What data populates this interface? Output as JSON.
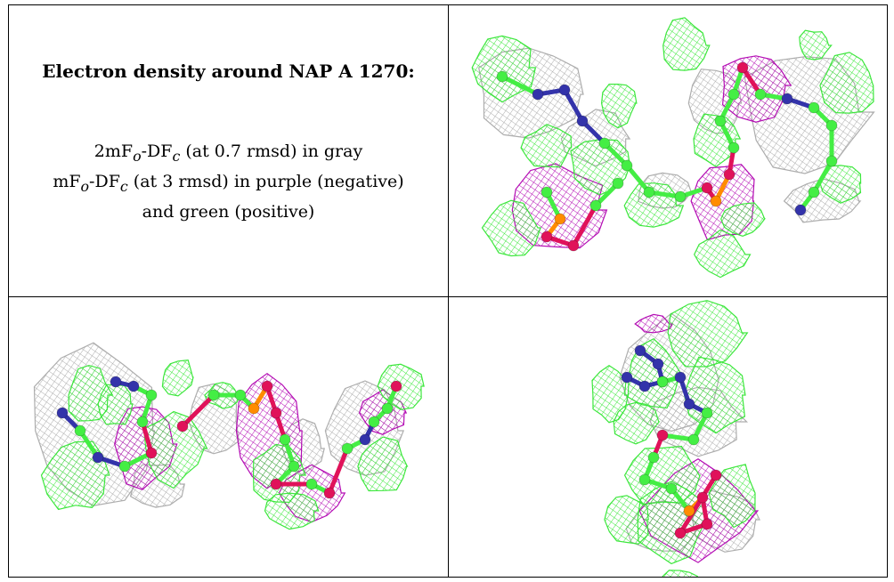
{
  "panel_text": {
    "title": "Electron density around NAP A 1270:",
    "line1": {
      "pre": "2mF",
      "sub1": "o",
      "mid": "-DF",
      "sub2": "c",
      "post": " (at 0.7 rmsd) in gray"
    },
    "line2": {
      "pre": "mF",
      "sub1": "o",
      "mid": "-DF",
      "sub2": "c",
      "post": " (at 3 rmsd) in purple (negative)"
    },
    "line3": "and green (positive)"
  },
  "colors": {
    "gray_mesh": "#a9a9a9",
    "purple_mesh": "#b000b0",
    "green_mesh": "#33e633",
    "carbon": "#44ee44",
    "nitrogen": "#3333aa",
    "oxygen": "#e0125a",
    "phosphorus": "#ff8c00"
  },
  "views": [
    {
      "name": "view-top-right",
      "description": "Molecular map view 1"
    },
    {
      "name": "view-bottom-left",
      "description": "Molecular map view 2"
    },
    {
      "name": "view-bottom-right",
      "description": "Molecular map view 3"
    }
  ]
}
